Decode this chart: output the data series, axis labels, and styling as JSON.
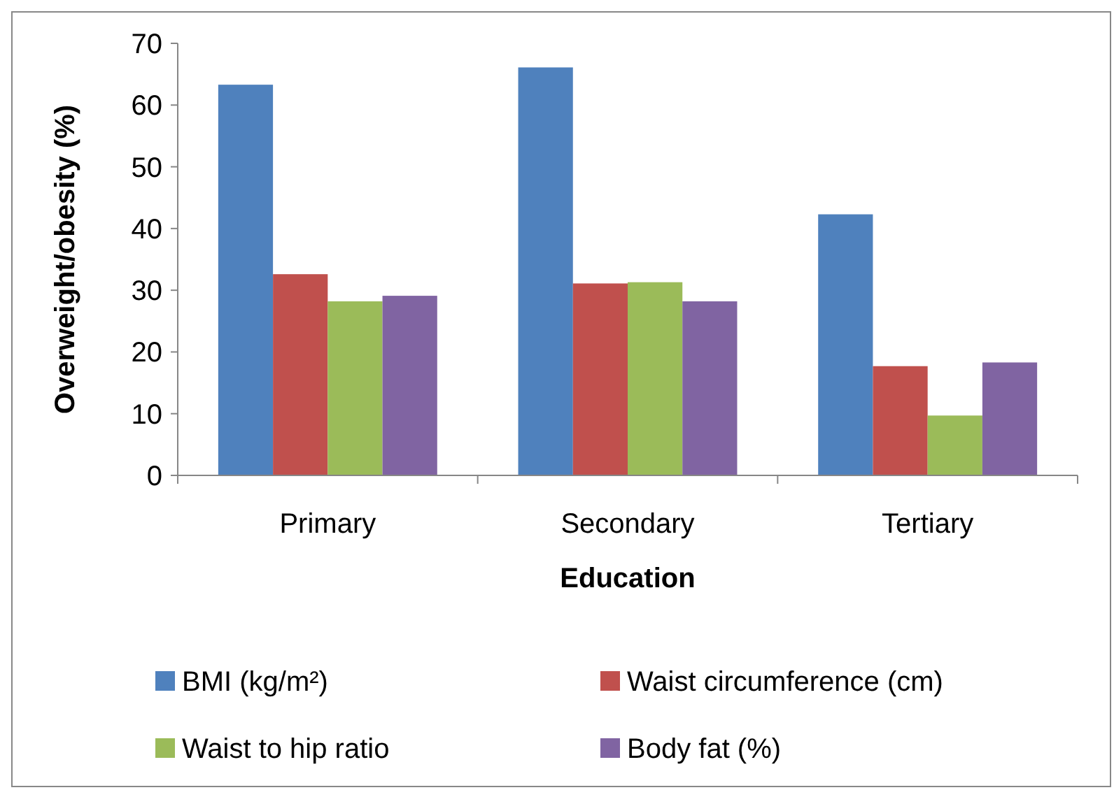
{
  "chart_data": {
    "type": "bar",
    "xlabel": "Education",
    "ylabel": "Overweight/obesity (%)",
    "categories": [
      "Primary",
      "Secondary",
      "Tertiary"
    ],
    "series": [
      {
        "name": "BMI (kg/m²)",
        "color": "#4f81bd",
        "values": [
          63.3,
          66.1,
          42.3
        ]
      },
      {
        "name": "Waist circumference (cm)",
        "color": "#c0504d",
        "values": [
          32.6,
          31.1,
          17.7
        ]
      },
      {
        "name": "Waist to hip ratio",
        "color": "#9bbb59",
        "values": [
          28.2,
          31.3,
          9.7
        ]
      },
      {
        "name": "Body fat (%)",
        "color": "#8064a2",
        "values": [
          29.1,
          28.2,
          18.3
        ]
      }
    ],
    "ylim": [
      0,
      70
    ],
    "yticks": [
      0,
      10,
      20,
      30,
      40,
      50,
      60,
      70
    ],
    "grid": false,
    "legend": "bottom"
  }
}
